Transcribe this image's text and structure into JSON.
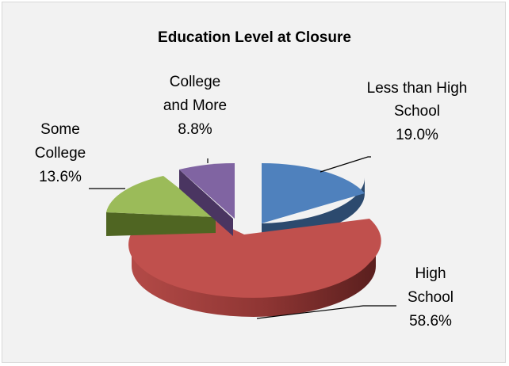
{
  "chart_data": {
    "type": "pie",
    "title": "Education Level at Closure",
    "three_d": true,
    "exploded": true,
    "legend": "none",
    "series": [
      {
        "category": "Less than High School",
        "label_lines": [
          "Less than High",
          "School"
        ],
        "value": 19.0,
        "value_label": "19.0%",
        "color": "#4f81bd",
        "side_color": "#2c4a6e"
      },
      {
        "category": "High School",
        "label_lines": [
          "High",
          "School"
        ],
        "value": 58.6,
        "value_label": "58.6%",
        "color": "#c0504d",
        "side_color": "#7a2b29"
      },
      {
        "category": "Some College",
        "label_lines": [
          "Some",
          "College"
        ],
        "value": 13.6,
        "value_label": "13.6%",
        "color": "#9bbb59",
        "side_color": "#4f6522"
      },
      {
        "category": "College and More",
        "label_lines": [
          "College",
          "and More"
        ],
        "value": 8.8,
        "value_label": "8.8%",
        "color": "#8064a2",
        "side_color": "#4a3561"
      }
    ]
  }
}
